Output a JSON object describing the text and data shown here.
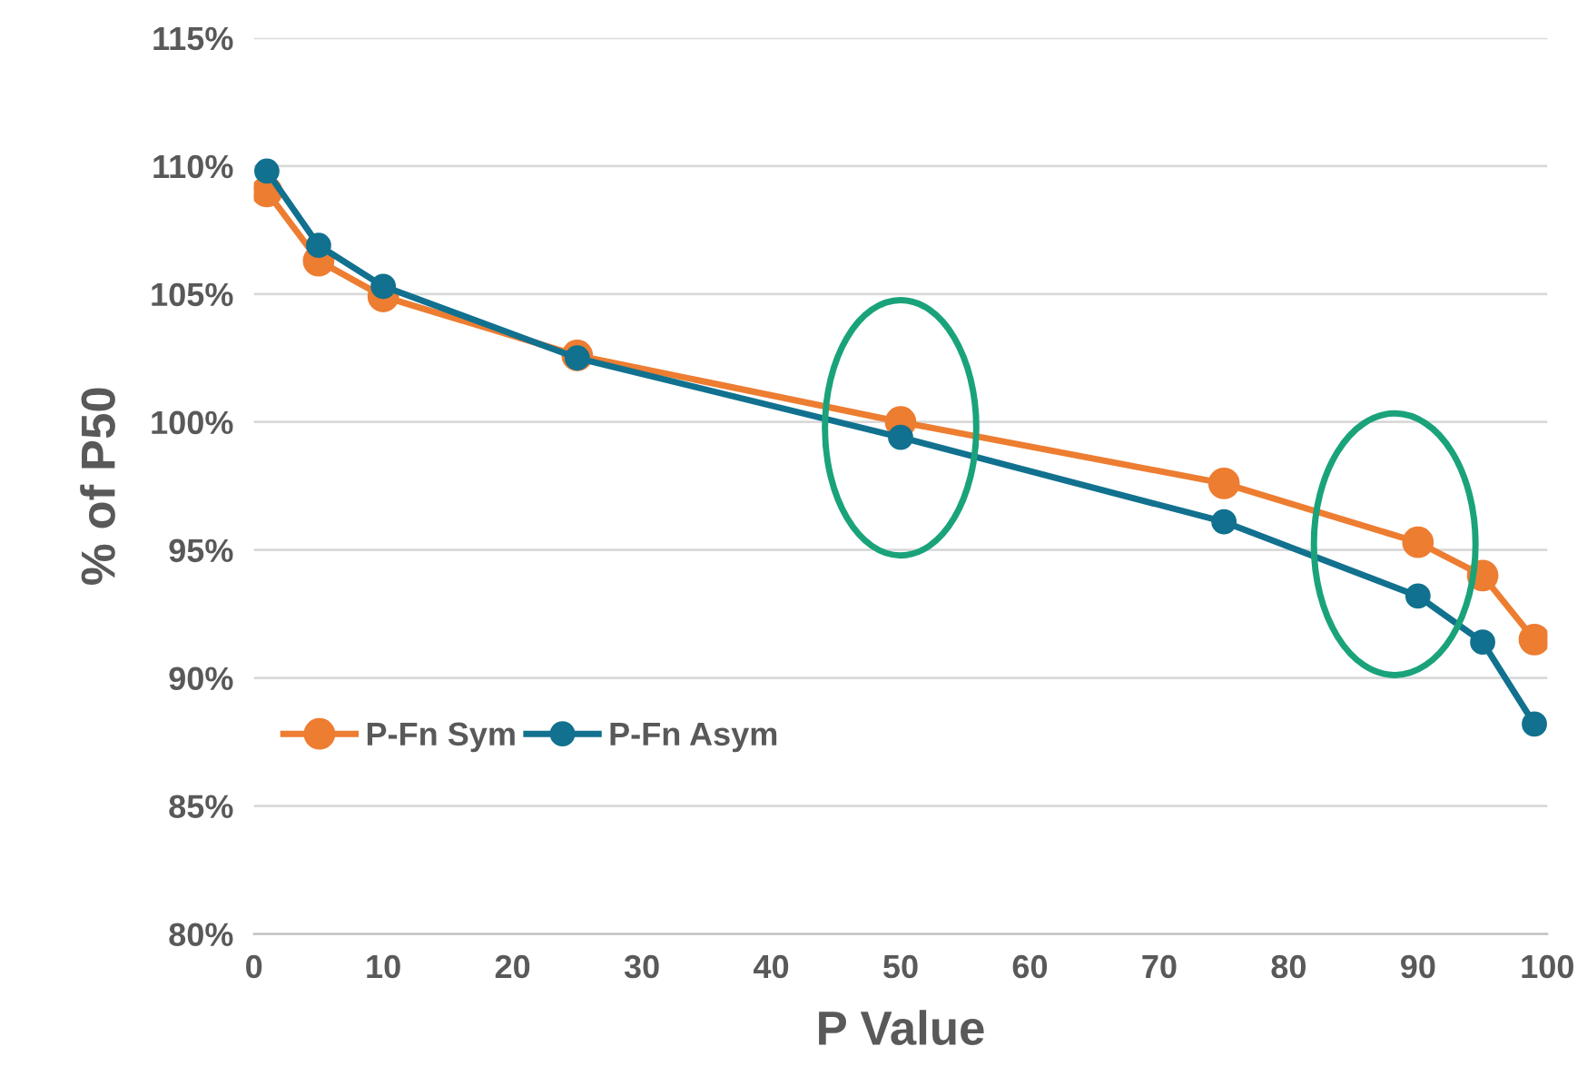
{
  "chart_data": {
    "type": "line",
    "xlabel": "P Value",
    "ylabel": "% of P50",
    "x": [
      1,
      5,
      10,
      25,
      50,
      75,
      90,
      95,
      99
    ],
    "series": [
      {
        "name": "P-Fn Sym",
        "color": "#ed7d31",
        "values": [
          109.0,
          106.3,
          104.9,
          102.6,
          100.0,
          97.6,
          95.3,
          94.0,
          91.5
        ]
      },
      {
        "name": "P-Fn Asym",
        "color": "#11718f",
        "values": [
          109.8,
          106.9,
          105.3,
          102.5,
          99.4,
          96.1,
          93.2,
          91.4,
          88.2
        ]
      }
    ],
    "xlim": [
      0,
      100
    ],
    "xticks": [
      0,
      10,
      20,
      30,
      40,
      50,
      60,
      70,
      80,
      90,
      100
    ],
    "ylim": [
      80,
      115
    ],
    "yticks": [
      {
        "value": 80,
        "label": "80%"
      },
      {
        "value": 85,
        "label": "85%"
      },
      {
        "value": 90,
        "label": "90%"
      },
      {
        "value": 95,
        "label": "95%"
      },
      {
        "value": 100,
        "label": "100%"
      },
      {
        "value": 105,
        "label": "105%"
      },
      {
        "value": 110,
        "label": "110%"
      },
      {
        "value": 115,
        "label": "115%"
      }
    ],
    "grid": "y",
    "legend": "left",
    "marker": "circle",
    "line_style": "solid"
  }
}
